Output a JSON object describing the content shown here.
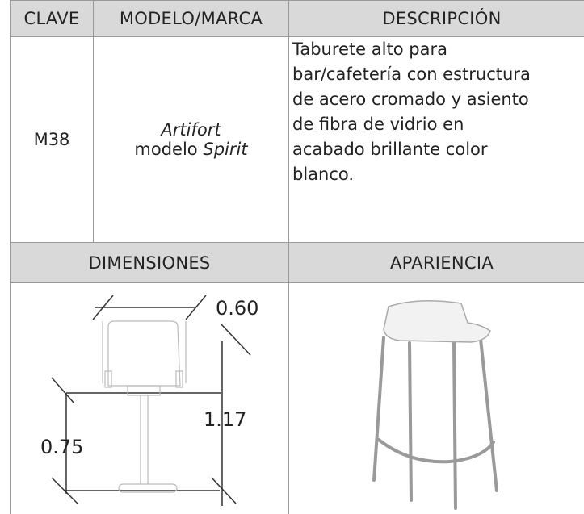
{
  "table": {
    "headers": [
      "CLAVE",
      "MODELO/MARCA",
      "DESCRIPCIÓN"
    ],
    "row": {
      "clave": "M38",
      "brand": "Artifort",
      "model_prefix": "modelo",
      "model_name": "Spirit",
      "description_lines": [
        "Taburete alto para",
        "bar/cafetería con estructura",
        "de acero cromado y asiento",
        "de fibra de vidrio en",
        "acabado brillante color",
        "blanco."
      ]
    },
    "lower_headers": [
      "DIMENSIONES",
      "APARIENCIA"
    ],
    "dimensions": {
      "width": "0.60",
      "height": "1.17",
      "seat_height": "0.75"
    }
  }
}
